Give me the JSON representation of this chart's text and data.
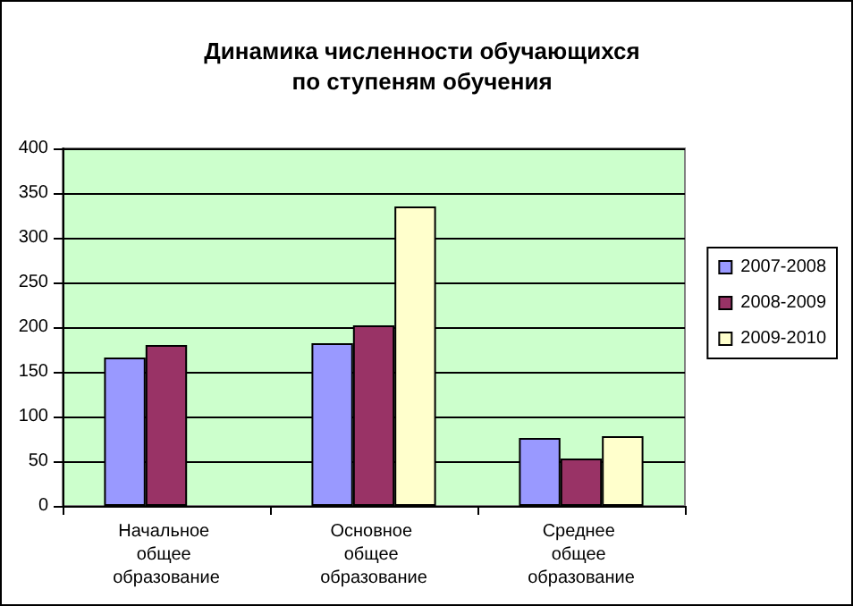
{
  "chart_data": {
    "type": "bar",
    "title": "Динамика численности обучающихся\nпо ступеням обучения",
    "categories": [
      "Начальное общее образование",
      "Основное общее образование",
      "Среднее общее образование"
    ],
    "series": [
      {
        "name": "2007-2008",
        "color": "#9999ff",
        "values": [
          166,
          182,
          76
        ]
      },
      {
        "name": "2008-2009",
        "color": "#993366",
        "values": [
          180,
          202,
          53
        ]
      },
      {
        "name": "2009-2010",
        "color": "#ffffcc",
        "values": [
          null,
          335,
          78
        ]
      }
    ],
    "ylim": [
      0,
      400
    ],
    "yticks": [
      0,
      50,
      100,
      150,
      200,
      250,
      300,
      350,
      400
    ],
    "grid": "y",
    "legend": "right"
  }
}
